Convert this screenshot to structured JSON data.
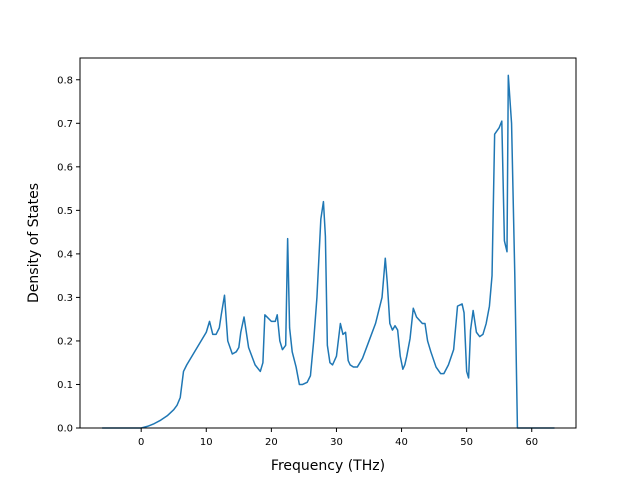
{
  "chart_data": {
    "type": "line",
    "title": "",
    "xlabel": "Frequency (THz)",
    "ylabel": "Density of States",
    "xlim": [
      -9.4,
      66.8
    ],
    "ylim": [
      0,
      0.85
    ],
    "x_ticks": [
      0,
      10,
      20,
      30,
      40,
      50,
      60
    ],
    "y_ticks": [
      0.0,
      0.1,
      0.2,
      0.3,
      0.4,
      0.5,
      0.6,
      0.7,
      0.8
    ],
    "x_tick_labels": [
      "0",
      "10",
      "20",
      "30",
      "40",
      "50",
      "60"
    ],
    "y_tick_labels": [
      "0.0",
      "0.1",
      "0.2",
      "0.3",
      "0.4",
      "0.5",
      "0.6",
      "0.7",
      "0.8"
    ],
    "grid": false,
    "color": "#1f77b4",
    "series": [
      {
        "x": [
          -6,
          -3,
          0,
          1,
          2,
          3,
          4,
          5,
          5.5,
          6,
          6.5,
          7,
          8,
          9,
          10,
          10.5,
          11,
          11.5,
          12,
          12.3,
          12.8,
          13.3,
          14,
          14.6,
          15,
          15.3,
          15.8,
          16.5,
          17.5,
          18.3,
          18.7,
          19,
          20,
          20.6,
          20.9,
          21.3,
          21.7,
          22.2,
          22.5,
          22.8,
          23.2,
          23.8,
          24.3,
          24.8,
          25.5,
          26,
          26.5,
          27,
          27.6,
          28,
          28.3,
          28.6,
          29,
          29.4,
          30,
          30.6,
          31,
          31.4,
          31.8,
          32.1,
          32.6,
          33.2,
          34,
          35,
          36,
          37,
          37.5,
          37.8,
          38.2,
          38.6,
          39,
          39.4,
          39.8,
          40.2,
          40.5,
          40.8,
          41.3,
          41.8,
          42.3,
          43.2,
          43.6,
          44,
          44.5,
          45.3,
          46,
          46.5,
          47.2,
          48,
          48.6,
          49.3,
          49.6,
          50,
          50.3,
          50.6,
          51,
          51.5,
          52,
          52.5,
          53,
          53.5,
          53.9,
          54.3,
          55,
          55.4,
          55.8,
          56.2,
          56.4,
          56.9,
          57.4,
          57.8,
          58.5,
          61,
          63.5
        ],
        "y": [
          0.0,
          0.0,
          0.0,
          0.004,
          0.01,
          0.018,
          0.028,
          0.042,
          0.052,
          0.07,
          0.13,
          0.145,
          0.17,
          0.195,
          0.22,
          0.245,
          0.215,
          0.215,
          0.23,
          0.26,
          0.305,
          0.2,
          0.17,
          0.175,
          0.185,
          0.22,
          0.255,
          0.185,
          0.145,
          0.13,
          0.15,
          0.26,
          0.245,
          0.245,
          0.26,
          0.2,
          0.18,
          0.19,
          0.435,
          0.23,
          0.175,
          0.14,
          0.1,
          0.1,
          0.105,
          0.12,
          0.2,
          0.3,
          0.48,
          0.52,
          0.44,
          0.19,
          0.15,
          0.145,
          0.165,
          0.24,
          0.215,
          0.22,
          0.155,
          0.145,
          0.14,
          0.14,
          0.16,
          0.2,
          0.24,
          0.3,
          0.39,
          0.335,
          0.24,
          0.225,
          0.235,
          0.225,
          0.165,
          0.135,
          0.145,
          0.165,
          0.205,
          0.275,
          0.255,
          0.24,
          0.24,
          0.2,
          0.175,
          0.14,
          0.125,
          0.125,
          0.145,
          0.18,
          0.28,
          0.285,
          0.265,
          0.13,
          0.115,
          0.225,
          0.27,
          0.22,
          0.21,
          0.215,
          0.24,
          0.28,
          0.35,
          0.675,
          0.69,
          0.705,
          0.43,
          0.405,
          0.81,
          0.7,
          0.35,
          0.0,
          0.0,
          0.0,
          0.0
        ]
      }
    ]
  }
}
